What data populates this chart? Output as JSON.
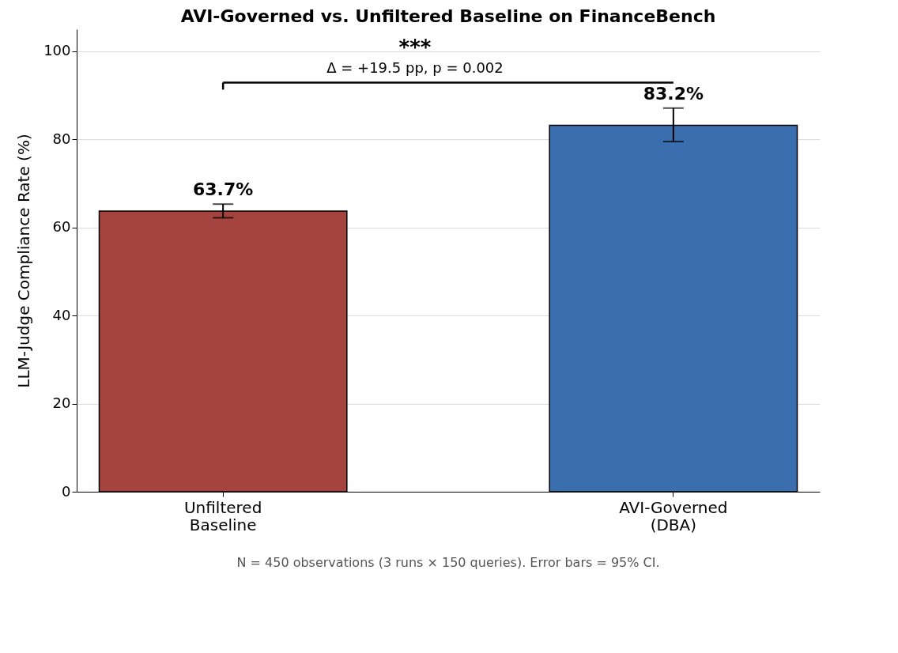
{
  "chart_data": {
    "type": "bar",
    "title": "AVI-Governed vs. Unfiltered Baseline on FinanceBench",
    "ylabel": "LLM-Judge Compliance Rate (%)",
    "categories": [
      "Unfiltered\nBaseline",
      "AVI-Governed\n(DBA)"
    ],
    "values": [
      63.7,
      83.2
    ],
    "colors": [
      "#a5443f",
      "#3a6eae"
    ],
    "errors": [
      [
        62.2,
        65.3
      ],
      [
        79.5,
        87.1
      ]
    ],
    "value_labels": [
      "63.7%",
      "83.2%"
    ],
    "ylim": [
      0,
      105
    ],
    "yticks": [
      0,
      20,
      40,
      60,
      80,
      100
    ],
    "grid": "y",
    "annotations": [
      "***",
      "Δ = +19.5 pp,  p = 0.002",
      "N = 450 observations (3 runs × 150 queries). Error bars = 95% CI."
    ]
  }
}
